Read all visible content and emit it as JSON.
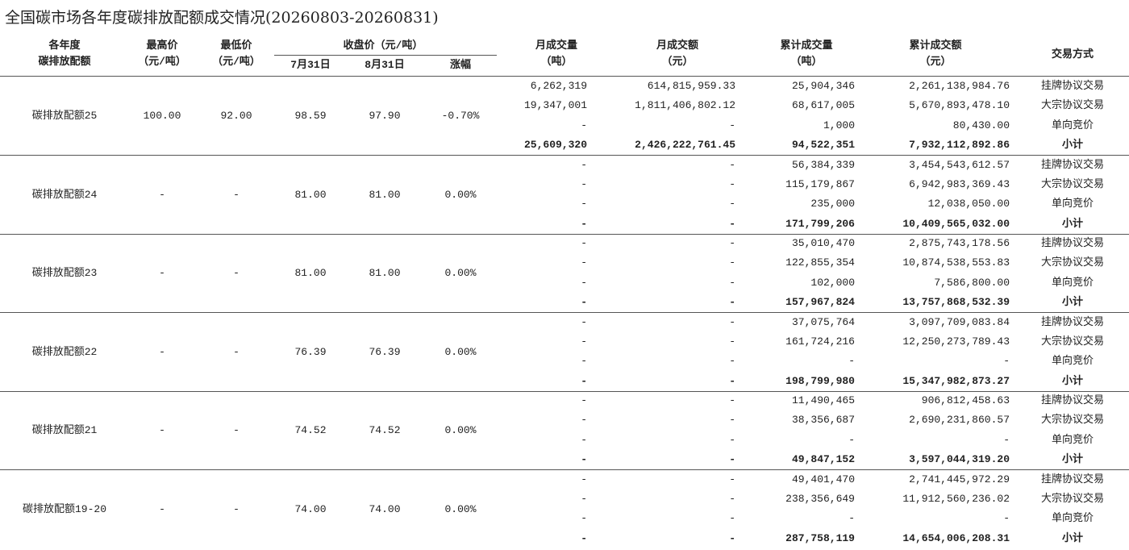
{
  "title": "全国碳市场各年度碳排放配额成交情况(20260803-20260831)",
  "header": {
    "row1": [
      "各年度",
      "最高价",
      "最低价",
      "收盘价（元/吨）",
      "月成交量",
      "月成交额",
      "累计成交量",
      "累计成交额",
      "交易方式"
    ],
    "row2": [
      "碳排放配额",
      "（元/吨）",
      "（元/吨）",
      "7月31日",
      "8月31日",
      "涨幅",
      "（吨）",
      "（元）",
      "（吨）",
      "（元）"
    ]
  },
  "groups": [
    {
      "cells": [
        "碳排放配额25",
        "100.00",
        "92.00",
        "98.59",
        "97.90",
        "-0.70%"
      ],
      "rows": [
        [
          "6,262,319",
          "614,815,959.33",
          "25,904,346",
          "2,261,138,984.76",
          "挂牌协议交易"
        ],
        [
          "19,347,001",
          "1,811,406,802.12",
          "68,617,005",
          "5,670,893,478.10",
          "大宗协议交易"
        ],
        [
          "-",
          "-",
          "1,000",
          "80,430.00",
          "单向竞价"
        ],
        [
          "25,609,320",
          "2,426,222,761.45",
          "94,522,351",
          "7,932,112,892.86",
          "小计"
        ]
      ]
    },
    {
      "cells": [
        "碳排放配额24",
        "-",
        "-",
        "81.00",
        "81.00",
        "0.00%"
      ],
      "rows": [
        [
          "-",
          "-",
          "56,384,339",
          "3,454,543,612.57",
          "挂牌协议交易"
        ],
        [
          "-",
          "-",
          "115,179,867",
          "6,942,983,369.43",
          "大宗协议交易"
        ],
        [
          "-",
          "-",
          "235,000",
          "12,038,050.00",
          "单向竞价"
        ],
        [
          "-",
          "-",
          "171,799,206",
          "10,409,565,032.00",
          "小计"
        ]
      ]
    },
    {
      "cells": [
        "碳排放配额23",
        "-",
        "-",
        "81.00",
        "81.00",
        "0.00%"
      ],
      "rows": [
        [
          "-",
          "-",
          "35,010,470",
          "2,875,743,178.56",
          "挂牌协议交易"
        ],
        [
          "-",
          "-",
          "122,855,354",
          "10,874,538,553.83",
          "大宗协议交易"
        ],
        [
          "-",
          "-",
          "102,000",
          "7,586,800.00",
          "单向竞价"
        ],
        [
          "-",
          "-",
          "157,967,824",
          "13,757,868,532.39",
          "小计"
        ]
      ]
    },
    {
      "cells": [
        "碳排放配额22",
        "-",
        "-",
        "76.39",
        "76.39",
        "0.00%"
      ],
      "rows": [
        [
          "-",
          "-",
          "37,075,764",
          "3,097,709,083.84",
          "挂牌协议交易"
        ],
        [
          "-",
          "-",
          "161,724,216",
          "12,250,273,789.43",
          "大宗协议交易"
        ],
        [
          "-",
          "-",
          "-",
          "-",
          "单向竞价"
        ],
        [
          "-",
          "-",
          "198,799,980",
          "15,347,982,873.27",
          "小计"
        ]
      ]
    },
    {
      "cells": [
        "碳排放配额21",
        "-",
        "-",
        "74.52",
        "74.52",
        "0.00%"
      ],
      "rows": [
        [
          "-",
          "-",
          "11,490,465",
          "906,812,458.63",
          "挂牌协议交易"
        ],
        [
          "-",
          "-",
          "38,356,687",
          "2,690,231,860.57",
          "大宗协议交易"
        ],
        [
          "-",
          "-",
          "-",
          "-",
          "单向竞价"
        ],
        [
          "-",
          "-",
          "49,847,152",
          "3,597,044,319.20",
          "小计"
        ]
      ]
    },
    {
      "cells": [
        "碳排放配额19-20",
        "-",
        "-",
        "74.00",
        "74.00",
        "0.00%"
      ],
      "rows": [
        [
          "-",
          "-",
          "49,401,470",
          "2,741,445,972.29",
          "挂牌协议交易"
        ],
        [
          "-",
          "-",
          "238,356,649",
          "11,912,560,236.02",
          "大宗协议交易"
        ],
        [
          "-",
          "-",
          "-",
          "-",
          "单向竞价"
        ],
        [
          "-",
          "-",
          "287,758,119",
          "14,654,006,208.31",
          "小计"
        ]
      ]
    }
  ]
}
